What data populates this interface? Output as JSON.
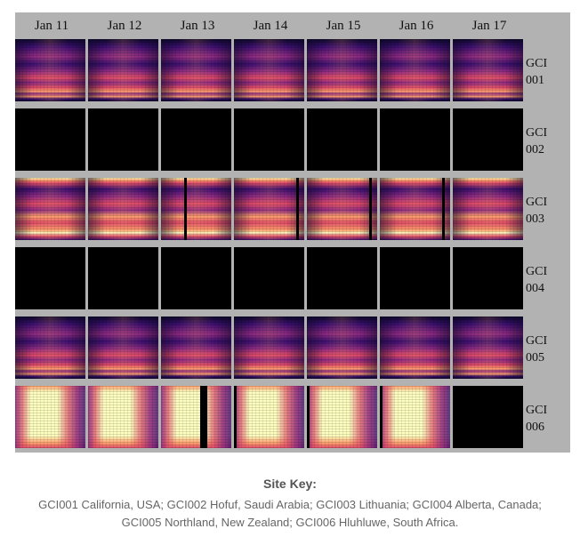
{
  "days": [
    "Jan 11",
    "Jan 12",
    "Jan 13",
    "Jan 14",
    "Jan 15",
    "Jan 16",
    "Jan 17"
  ],
  "sites": [
    {
      "line1": "GCI",
      "line2": "001",
      "style": "standard"
    },
    {
      "line1": "GCI",
      "line2": "002",
      "style": "nodata"
    },
    {
      "line1": "GCI",
      "line2": "003",
      "style": "bright"
    },
    {
      "line1": "GCI",
      "line2": "004",
      "style": "nodata"
    },
    {
      "line1": "GCI",
      "line2": "005",
      "style": "standard"
    },
    {
      "line1": "GCI",
      "line2": "006",
      "style": "saturated"
    }
  ],
  "site_key": {
    "title": "Site Key:",
    "line1": "GCI001 California, USA;  GCI002 Hofuf, Saudi Arabia;  GCI003 Lithuania;  GCI004 Alberta, Canada;",
    "line2": "GCI005 Northland, New Zealand;  GCI006 Hluhluwe, South Africa."
  },
  "colors": {
    "frame": "#b2b2b2",
    "nodata": "#000000",
    "palette": [
      "#0d0829",
      "#3b0f70",
      "#8c2981",
      "#de4968",
      "#fe9f6d",
      "#fcfdbf"
    ]
  }
}
